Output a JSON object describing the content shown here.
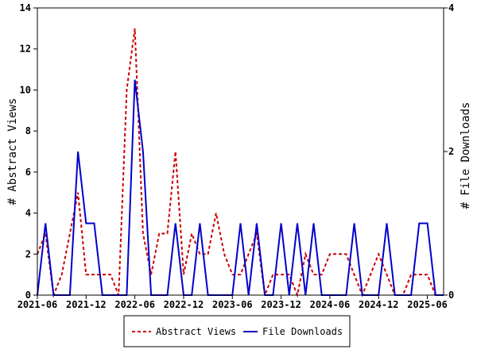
{
  "chart_data": {
    "type": "line",
    "x": [
      "2021-06",
      "2021-07",
      "2021-08",
      "2021-09",
      "2021-10",
      "2021-11",
      "2021-12",
      "2022-01",
      "2022-02",
      "2022-03",
      "2022-04",
      "2022-05",
      "2022-06",
      "2022-07",
      "2022-08",
      "2022-09",
      "2022-10",
      "2022-11",
      "2022-12",
      "2023-01",
      "2023-02",
      "2023-03",
      "2023-04",
      "2023-05",
      "2023-06",
      "2023-07",
      "2023-08",
      "2023-09",
      "2023-10",
      "2023-11",
      "2023-12",
      "2024-01",
      "2024-02",
      "2024-03",
      "2024-04",
      "2024-05",
      "2024-06",
      "2024-07",
      "2024-08",
      "2024-09",
      "2024-10",
      "2024-11",
      "2024-12",
      "2025-01",
      "2025-02",
      "2025-03",
      "2025-04",
      "2025-05",
      "2025-06",
      "2025-07",
      "2025-08"
    ],
    "xticks": [
      "2021-06",
      "2021-12",
      "2022-06",
      "2022-12",
      "2023-06",
      "2023-12",
      "2024-06",
      "2024-12",
      "2025-06"
    ],
    "series": [
      {
        "name": "Abstract Views",
        "axis": "left",
        "color": "#cc0000",
        "style": "dashed",
        "values": [
          2,
          3,
          0,
          1,
          3,
          5,
          1,
          1,
          1,
          1,
          0,
          10,
          13,
          3,
          1,
          3,
          3,
          7,
          1,
          3,
          2,
          2,
          4,
          2,
          1,
          1,
          2,
          3,
          0,
          1,
          1,
          1,
          0,
          2,
          1,
          1,
          2,
          2,
          2,
          1,
          0,
          1,
          2,
          1,
          0,
          0,
          1,
          1,
          1,
          0,
          0
        ]
      },
      {
        "name": "File Downloads",
        "axis": "right",
        "color": "#0000cc",
        "style": "solid",
        "values": [
          0,
          1,
          0,
          0,
          0,
          2,
          1,
          1,
          0,
          0,
          0,
          0,
          3,
          2,
          0,
          0,
          0,
          1,
          0,
          0,
          1,
          0,
          0,
          0,
          0,
          1,
          0,
          1,
          0,
          0,
          1,
          0,
          1,
          0,
          1,
          0,
          0,
          0,
          0,
          1,
          0,
          0,
          0,
          1,
          0,
          0,
          0,
          1,
          1,
          0,
          0
        ]
      }
    ],
    "ylabel": "# Abstract Views",
    "y2label": "# File Downloads",
    "ylim": [
      0,
      14
    ],
    "yticks": [
      0,
      2,
      4,
      6,
      8,
      10,
      12,
      14
    ],
    "y2lim": [
      0,
      4
    ],
    "y2ticks": [
      0,
      2,
      4
    ],
    "grid": false,
    "legend_position": "bottom"
  }
}
